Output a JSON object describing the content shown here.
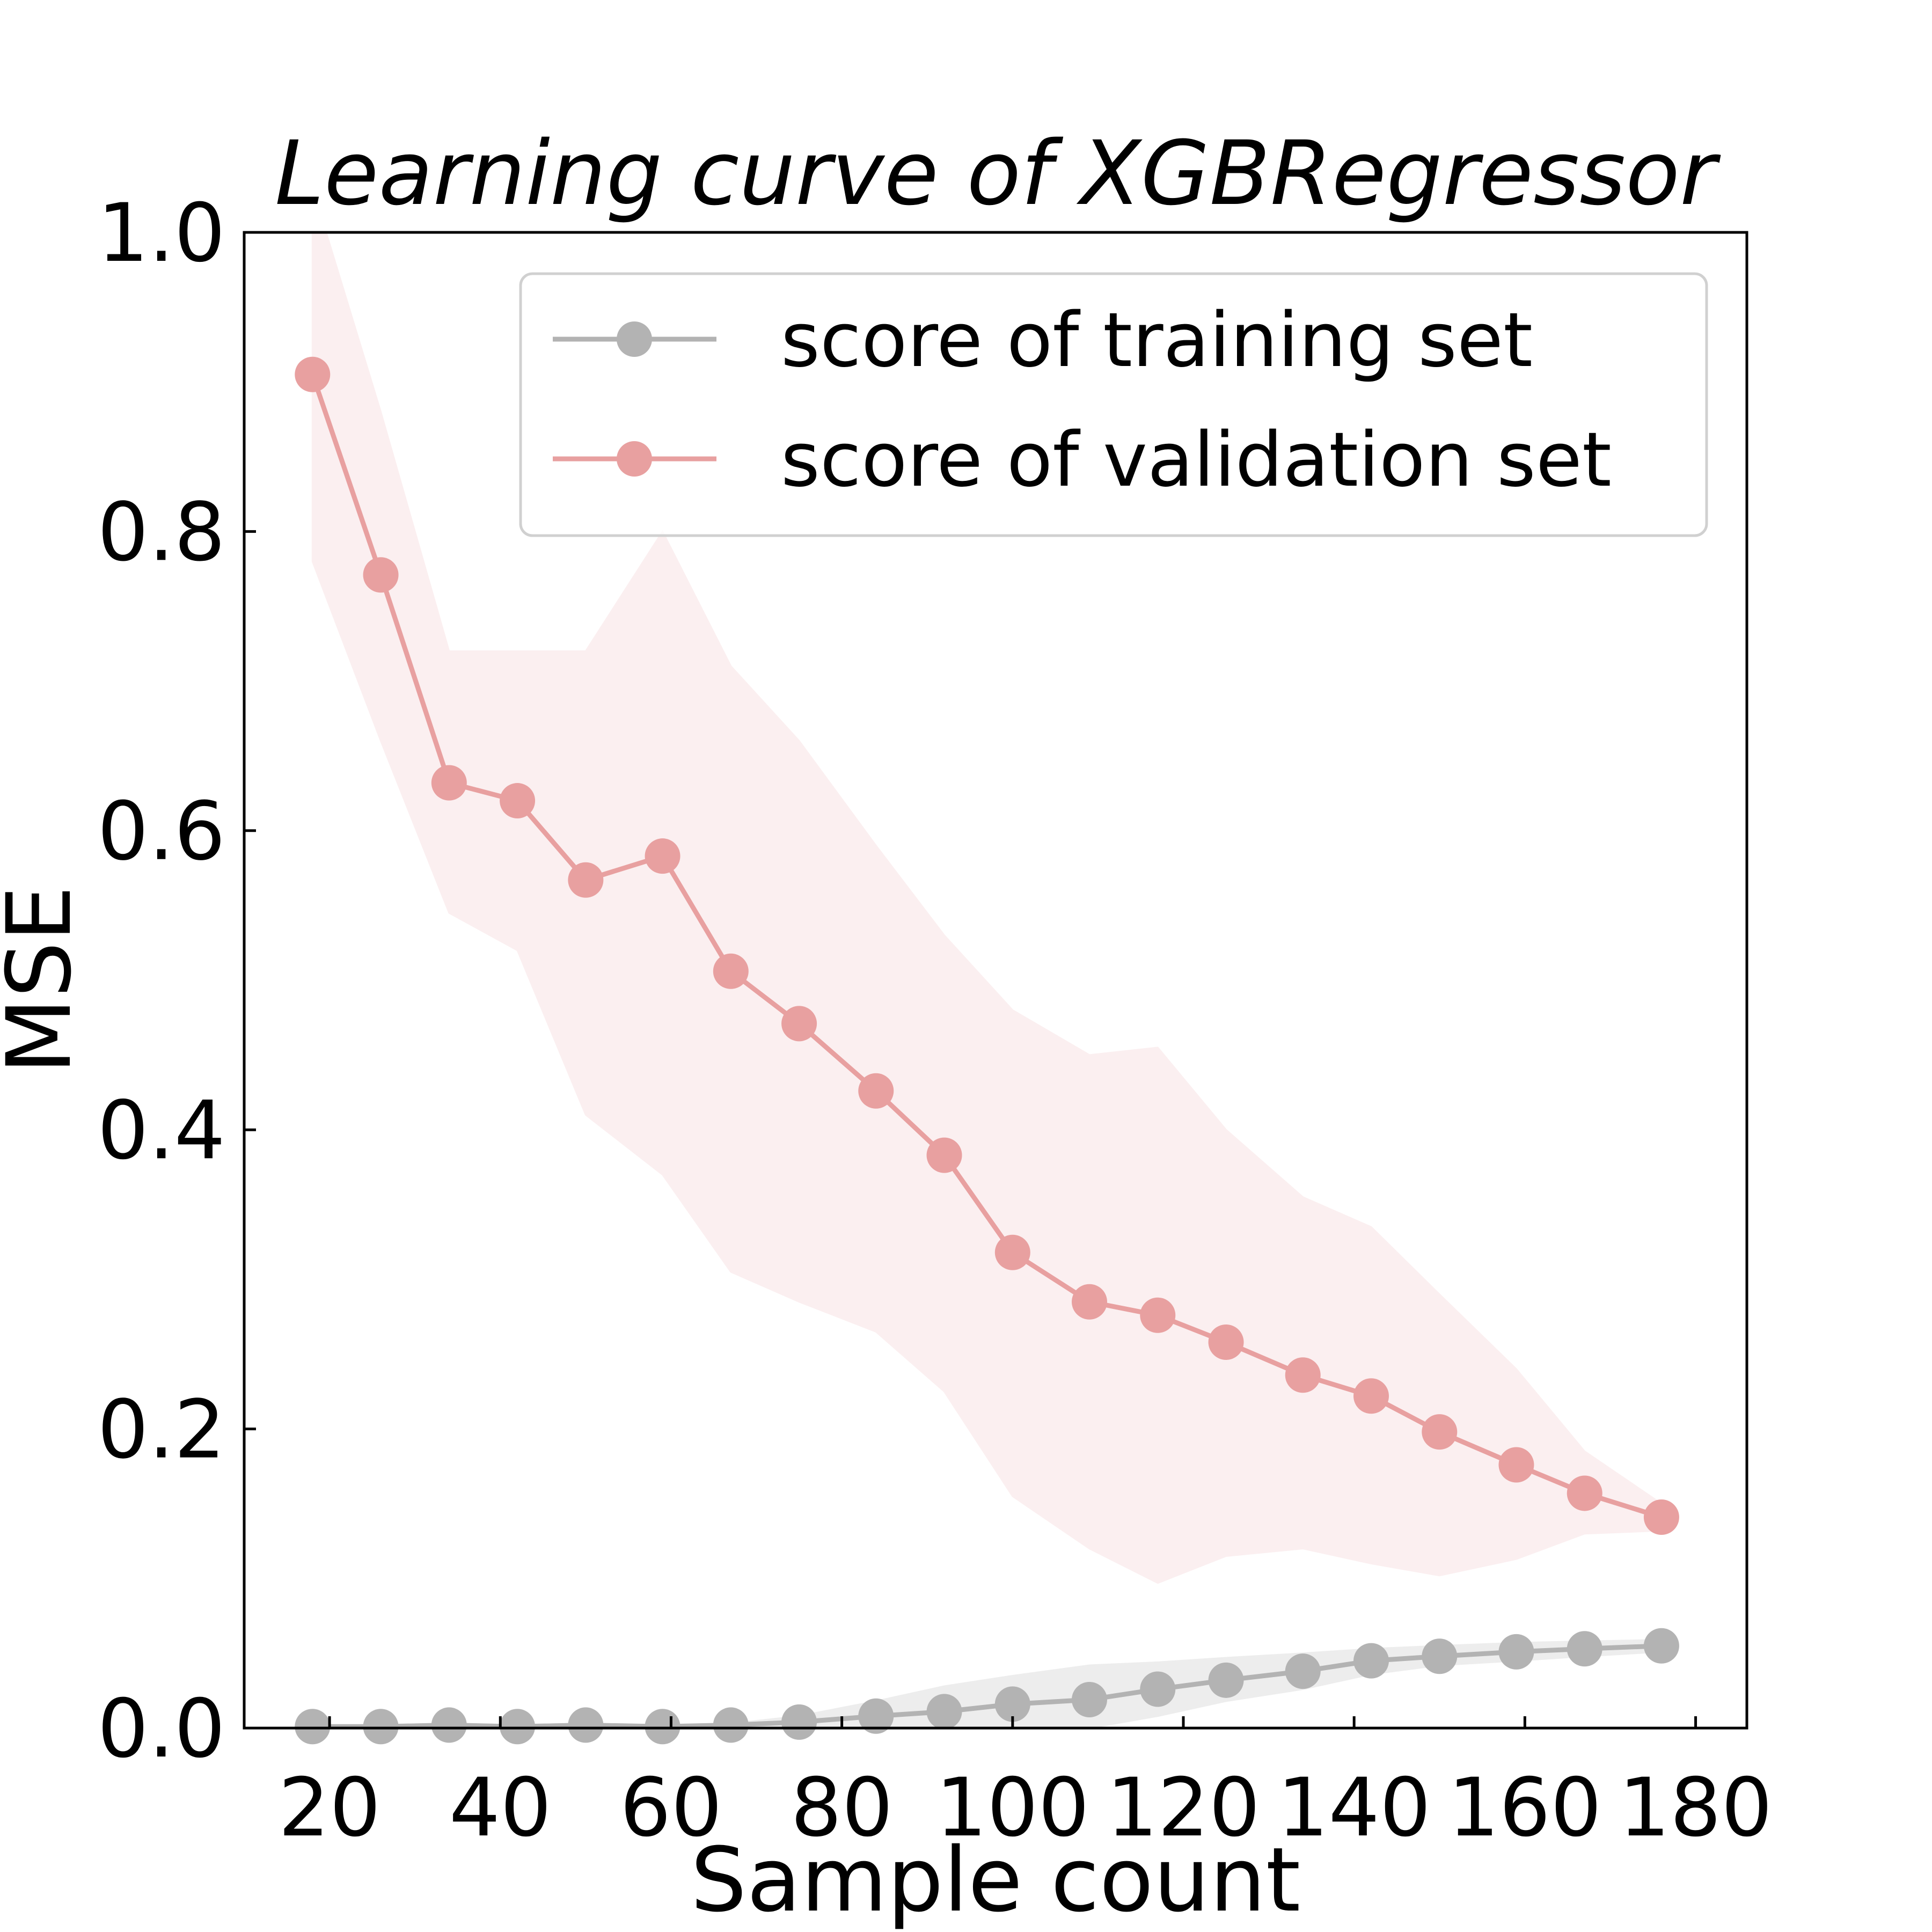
{
  "chart_data": {
    "type": "line",
    "title": "Learning curve of XGBRegressor",
    "xlabel": "Sample count",
    "ylabel": "MSE",
    "xlim": [
      10,
      186
    ],
    "ylim": [
      0.0,
      1.0
    ],
    "xticks": [
      20,
      40,
      60,
      80,
      100,
      120,
      140,
      160,
      180
    ],
    "xtick_labels": [
      "20",
      "40",
      "60",
      "80",
      "100",
      "120",
      "140",
      "160",
      "180"
    ],
    "yticks": [
      0.0,
      0.2,
      0.4,
      0.6,
      0.8,
      1.0
    ],
    "ytick_labels": [
      "0.0",
      "0.2",
      "0.4",
      "0.6",
      "0.8",
      "1.0"
    ],
    "grid": false,
    "legend_position": "top-right",
    "x": [
      18,
      26,
      34,
      42,
      50,
      59,
      67,
      75,
      84,
      92,
      100,
      109,
      117,
      125,
      134,
      142,
      150,
      159,
      167,
      176
    ],
    "series": [
      {
        "name": "score of training set",
        "color": "#b3b3b3",
        "values": [
          0.001,
          0.001,
          0.002,
          0.001,
          0.002,
          0.001,
          0.002,
          0.004,
          0.008,
          0.011,
          0.016,
          0.019,
          0.026,
          0.032,
          0.038,
          0.045,
          0.048,
          0.051,
          0.053,
          0.055
        ],
        "band_upper": [
          0.002,
          0.002,
          0.003,
          0.002,
          0.003,
          0.002,
          0.003,
          0.008,
          0.018,
          0.028,
          0.035,
          0.042,
          0.044,
          0.047,
          0.05,
          0.053,
          0.055,
          0.057,
          0.058,
          0.059
        ],
        "band_lower": [
          0.0,
          0.0,
          0.001,
          0.0,
          0.001,
          0.0,
          0.001,
          0.0,
          0.0,
          0.0,
          0.0,
          0.0,
          0.008,
          0.018,
          0.026,
          0.036,
          0.042,
          0.045,
          0.048,
          0.051
        ]
      },
      {
        "name": "score of validation set",
        "color": "#e8a0a0",
        "values": [
          0.905,
          0.771,
          0.632,
          0.62,
          0.567,
          0.583,
          0.506,
          0.471,
          0.426,
          0.383,
          0.318,
          0.285,
          0.276,
          0.258,
          0.236,
          0.222,
          0.198,
          0.176,
          0.157,
          0.141
        ],
        "band_upper": [
          1.03,
          0.88,
          0.72,
          0.72,
          0.72,
          0.8,
          0.71,
          0.66,
          0.59,
          0.53,
          0.48,
          0.45,
          0.455,
          0.4,
          0.355,
          0.335,
          0.29,
          0.24,
          0.185,
          0.15
        ],
        "band_lower": [
          0.78,
          0.66,
          0.545,
          0.52,
          0.41,
          0.37,
          0.305,
          0.285,
          0.265,
          0.225,
          0.155,
          0.12,
          0.097,
          0.115,
          0.12,
          0.11,
          0.102,
          0.113,
          0.13,
          0.132
        ]
      }
    ]
  }
}
